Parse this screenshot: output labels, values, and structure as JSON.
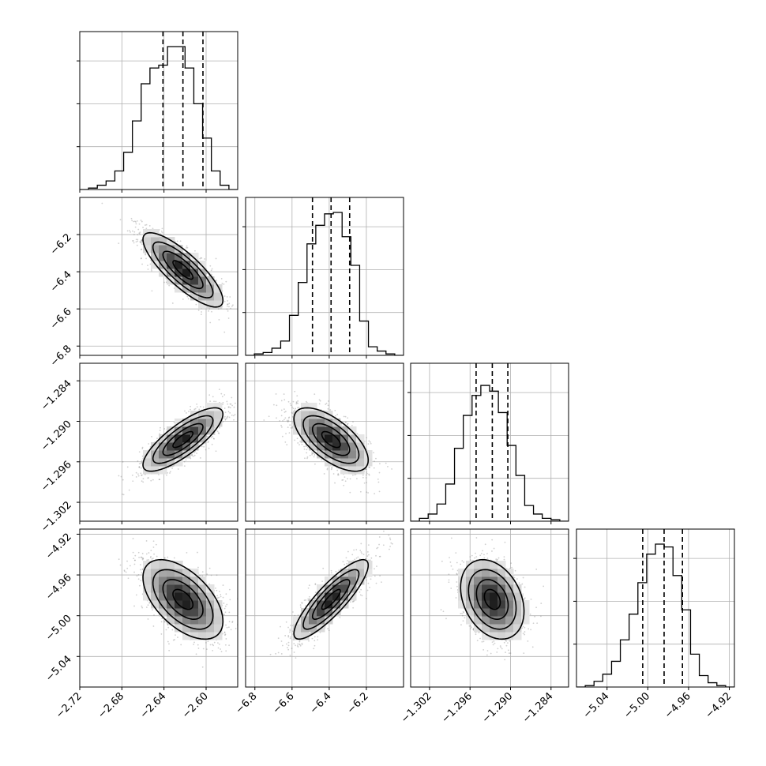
{
  "chart_data": {
    "type": "corner",
    "parameters": [
      {
        "median": -2.622,
        "q16": -2.641,
        "q84": -2.603,
        "range": [
          -2.72,
          -2.57
        ],
        "ticks": [
          -2.72,
          -2.68,
          -2.64,
          -2.6
        ],
        "tick_labels": [
          "−2.72",
          "−2.68",
          "−2.64",
          "−2.60"
        ],
        "hist": [
          0,
          0.01,
          0.03,
          0.06,
          0.13,
          0.26,
          0.48,
          0.74,
          0.85,
          0.87,
          1.0,
          1.0,
          0.85,
          0.6,
          0.36,
          0.13,
          0.03,
          0.0
        ]
      },
      {
        "median": -6.39,
        "q16": -6.49,
        "q84": -6.29,
        "range": [
          -6.85,
          -6.0
        ],
        "ticks": [
          -6.8,
          -6.6,
          -6.4,
          -6.2
        ],
        "tick_labels": [
          "−6.8",
          "−6.6",
          "−6.4",
          "−6.2"
        ],
        "hist": [
          0,
          0.01,
          0.02,
          0.05,
          0.1,
          0.28,
          0.51,
          0.78,
          0.91,
          0.99,
          1.0,
          0.83,
          0.63,
          0.24,
          0.06,
          0.03,
          0.01,
          0.0
        ]
      },
      {
        "median": -1.2927,
        "q16": -1.2951,
        "q84": -1.2904,
        "range": [
          -1.3048,
          -1.2814
        ],
        "ticks": [
          -1.302,
          -1.296,
          -1.29,
          -1.284
        ],
        "tick_labels": [
          "−1.302",
          "−1.296",
          "−1.290",
          "−1.284"
        ],
        "hist": [
          0,
          0.02,
          0.05,
          0.12,
          0.26,
          0.51,
          0.74,
          0.88,
          0.95,
          0.91,
          0.76,
          0.53,
          0.32,
          0.11,
          0.05,
          0.02,
          0.01,
          0.0
        ]
      },
      {
        "median": -4.984,
        "q16": -5.005,
        "q84": -4.966,
        "range": [
          -5.07,
          -4.915
        ],
        "ticks": [
          -5.04,
          -5.0,
          -4.96,
          -4.92
        ],
        "tick_labels": [
          "−5.04",
          "−5.00",
          "−4.96",
          "−4.92"
        ],
        "hist": [
          0,
          0.01,
          0.04,
          0.09,
          0.18,
          0.33,
          0.51,
          0.73,
          0.93,
          1.0,
          0.98,
          0.78,
          0.54,
          0.23,
          0.08,
          0.03,
          0.01,
          0.0
        ]
      }
    ],
    "correlations": [
      [
        1,
        -0.82,
        0.8,
        -0.55
      ],
      [
        -0.82,
        1,
        -0.65,
        0.86
      ],
      [
        0.8,
        -0.65,
        1,
        -0.3
      ],
      [
        -0.55,
        0.86,
        -0.3,
        1
      ]
    ],
    "hist_ytick_fractions": [
      0.3,
      0.6,
      0.9
    ],
    "grid": true
  }
}
